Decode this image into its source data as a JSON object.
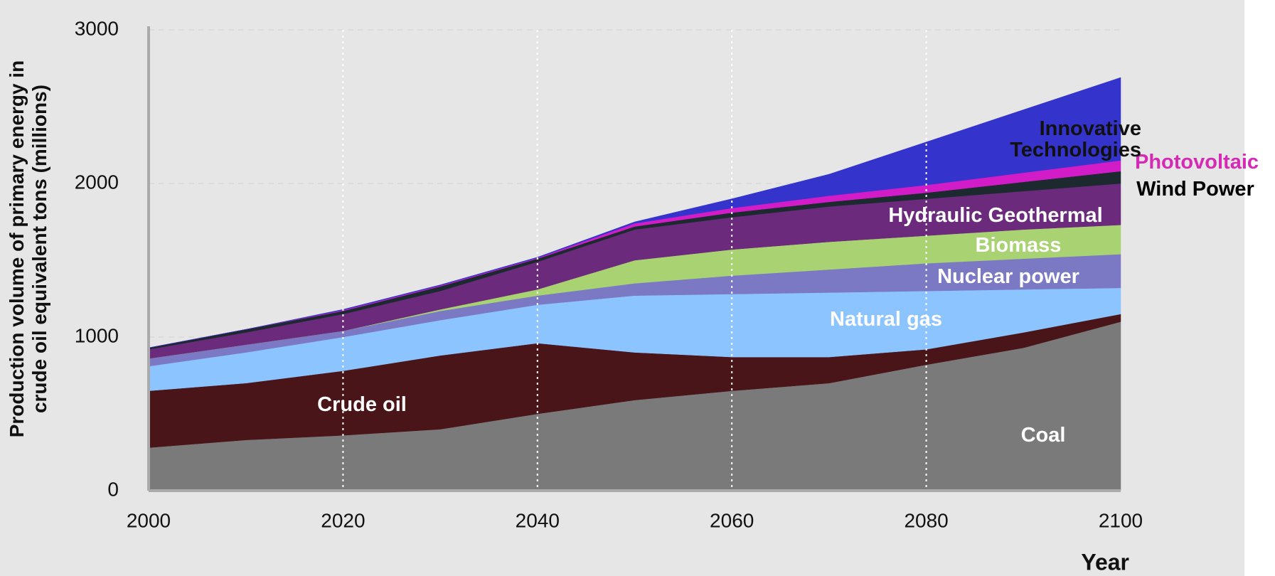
{
  "chart_data": {
    "type": "stacked_area",
    "y_label": [
      "Production volume of primary energy in",
      "crude oil equivalent tons (millions)"
    ],
    "x_label": "Year",
    "x": [
      2000,
      2010,
      2020,
      2030,
      2040,
      2050,
      2060,
      2070,
      2080,
      2090,
      2100
    ],
    "xlim": [
      2000,
      2100
    ],
    "xticks": [
      2000,
      2020,
      2040,
      2060,
      2080,
      2100
    ],
    "ylim": [
      0,
      3000
    ],
    "yticks": [
      0,
      1000,
      2000,
      3000
    ],
    "grid": true,
    "series": [
      {
        "name": "Coal",
        "color": "#7a7a7a",
        "values": [
          280,
          330,
          360,
          400,
          500,
          590,
          650,
          700,
          820,
          930,
          1100
        ]
      },
      {
        "name": "Crude oil",
        "color": "#4a1519",
        "values": [
          370,
          370,
          420,
          480,
          460,
          310,
          220,
          170,
          100,
          100,
          50
        ]
      },
      {
        "name": "Natural gas",
        "color": "#8cc4ff",
        "values": [
          160,
          200,
          220,
          230,
          250,
          370,
          410,
          420,
          380,
          280,
          170
        ]
      },
      {
        "name": "Nuclear power",
        "color": "#7c79c4",
        "values": [
          50,
          50,
          40,
          60,
          60,
          80,
          120,
          150,
          180,
          200,
          220
        ]
      },
      {
        "name": "Biomass",
        "color": "#a9d273",
        "values": [
          0,
          0,
          0,
          10,
          40,
          150,
          170,
          180,
          180,
          190,
          190
        ]
      },
      {
        "name": "Hydraulic Geothermal",
        "color": "#6b2a7c",
        "values": [
          60,
          80,
          110,
          120,
          180,
          200,
          210,
          230,
          240,
          250,
          270
        ]
      },
      {
        "name": "Wind Power",
        "color": "#1c2a30",
        "values": [
          10,
          20,
          20,
          30,
          20,
          20,
          30,
          30,
          40,
          60,
          80
        ]
      },
      {
        "name": "Photovoltaic",
        "color": "#d21cc8",
        "values": [
          0,
          0,
          5,
          5,
          5,
          20,
          30,
          40,
          50,
          60,
          70
        ]
      },
      {
        "name": "Innovative Technologies",
        "color": "#3434cc",
        "values": [
          0,
          0,
          5,
          5,
          5,
          10,
          60,
          140,
          280,
          410,
          540
        ]
      }
    ]
  }
}
